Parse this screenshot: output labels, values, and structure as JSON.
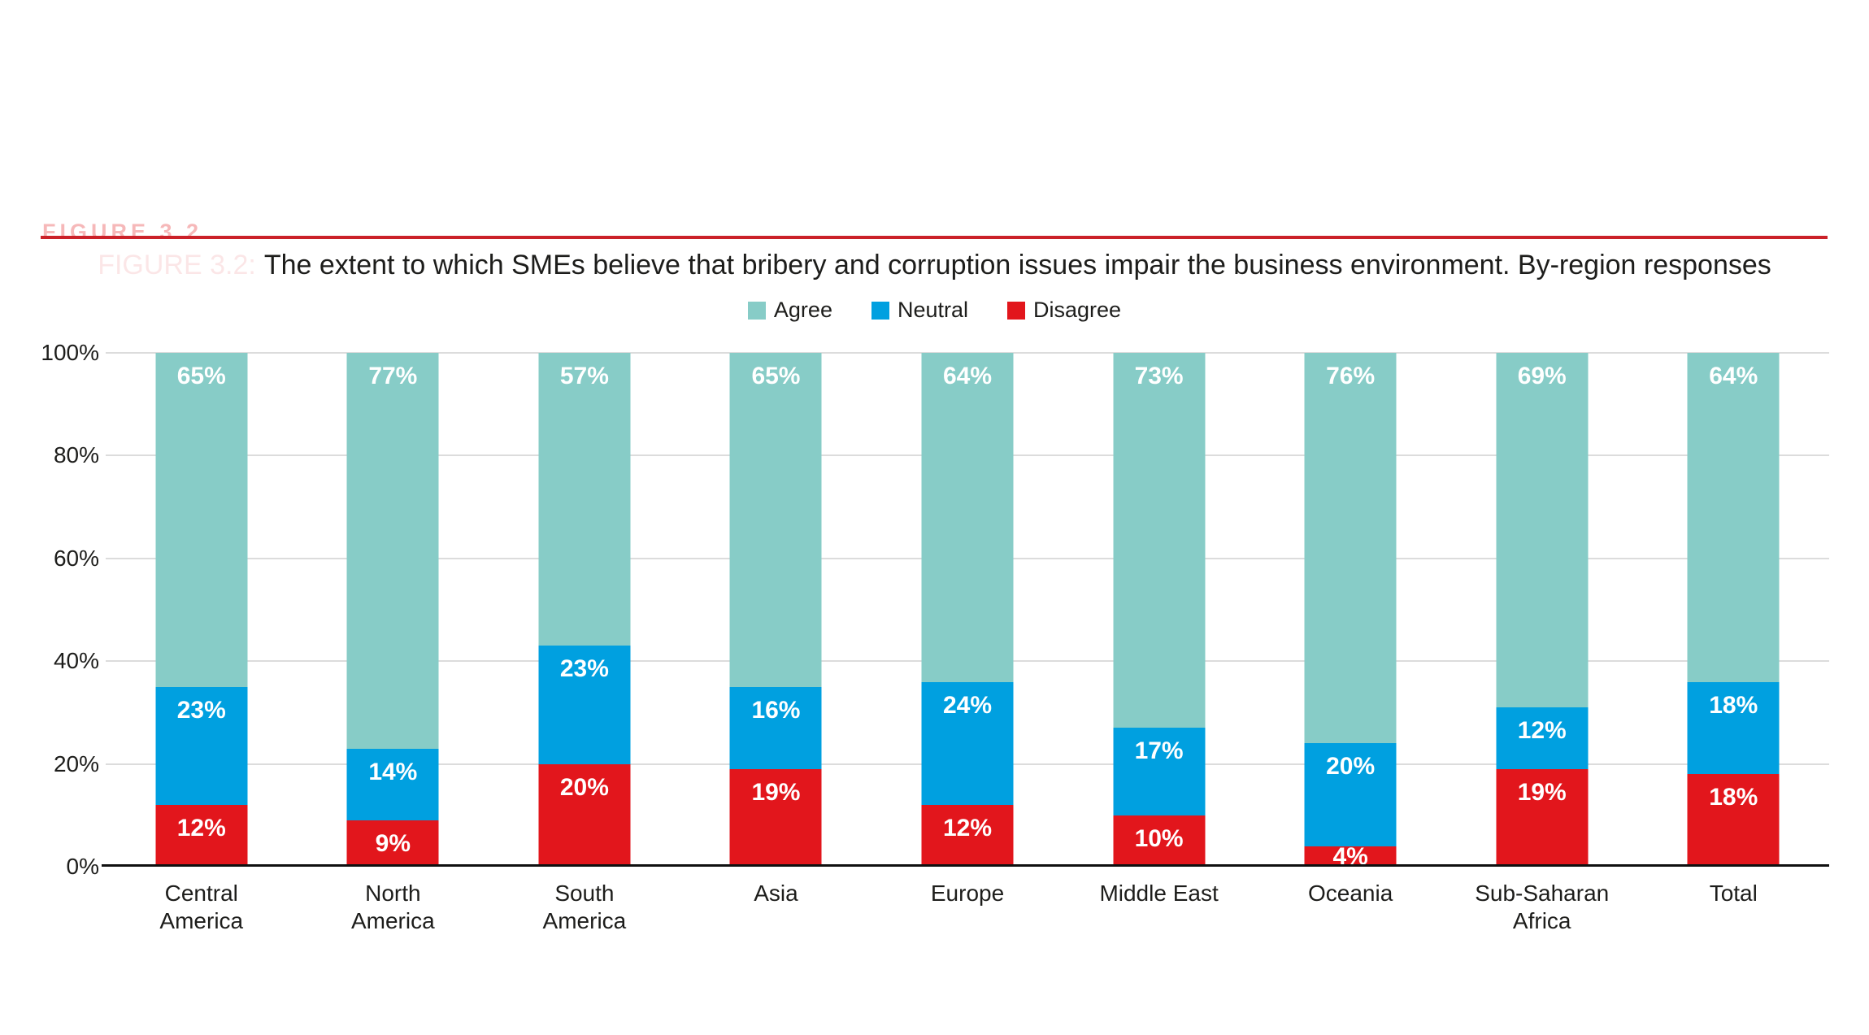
{
  "figure": {
    "ghost_label": "FIGURE 3.2",
    "ghost_prefix": "FIGURE 3.2:"
  },
  "colors": {
    "agree": "#87ccc7",
    "neutral": "#00a0e0",
    "disagree": "#e2161c",
    "rule_red": "#cb2129",
    "grid": "#dcdcdc",
    "axis": "#101010",
    "text": "#1d1d1b"
  },
  "chart_data": {
    "type": "bar",
    "stacked": true,
    "title": "The extent to which SMEs believe that bribery and corruption issues impair the business environment. By-region responses",
    "xlabel": "",
    "ylabel": "",
    "ylim": [
      0,
      100
    ],
    "yticks": [
      "0%",
      "20%",
      "40%",
      "60%",
      "80%",
      "100%"
    ],
    "grid": true,
    "legend_position": "top",
    "value_label_format": "percent",
    "categories": [
      [
        "Central",
        "America"
      ],
      [
        "North",
        "America"
      ],
      [
        "South",
        "America"
      ],
      [
        "Asia"
      ],
      [
        "Europe"
      ],
      [
        "Middle East"
      ],
      [
        "Oceania"
      ],
      [
        "Sub-Saharan",
        "Africa"
      ],
      [
        "Total"
      ]
    ],
    "series": [
      {
        "name": "Agree",
        "color": "#87ccc7",
        "values": [
          65,
          77,
          57,
          65,
          64,
          73,
          76,
          69,
          64
        ]
      },
      {
        "name": "Neutral",
        "color": "#00a0e0",
        "values": [
          23,
          14,
          23,
          16,
          24,
          17,
          20,
          12,
          18
        ]
      },
      {
        "name": "Disagree",
        "color": "#e2161c",
        "values": [
          12,
          9,
          20,
          19,
          12,
          10,
          4,
          19,
          18
        ]
      }
    ]
  }
}
